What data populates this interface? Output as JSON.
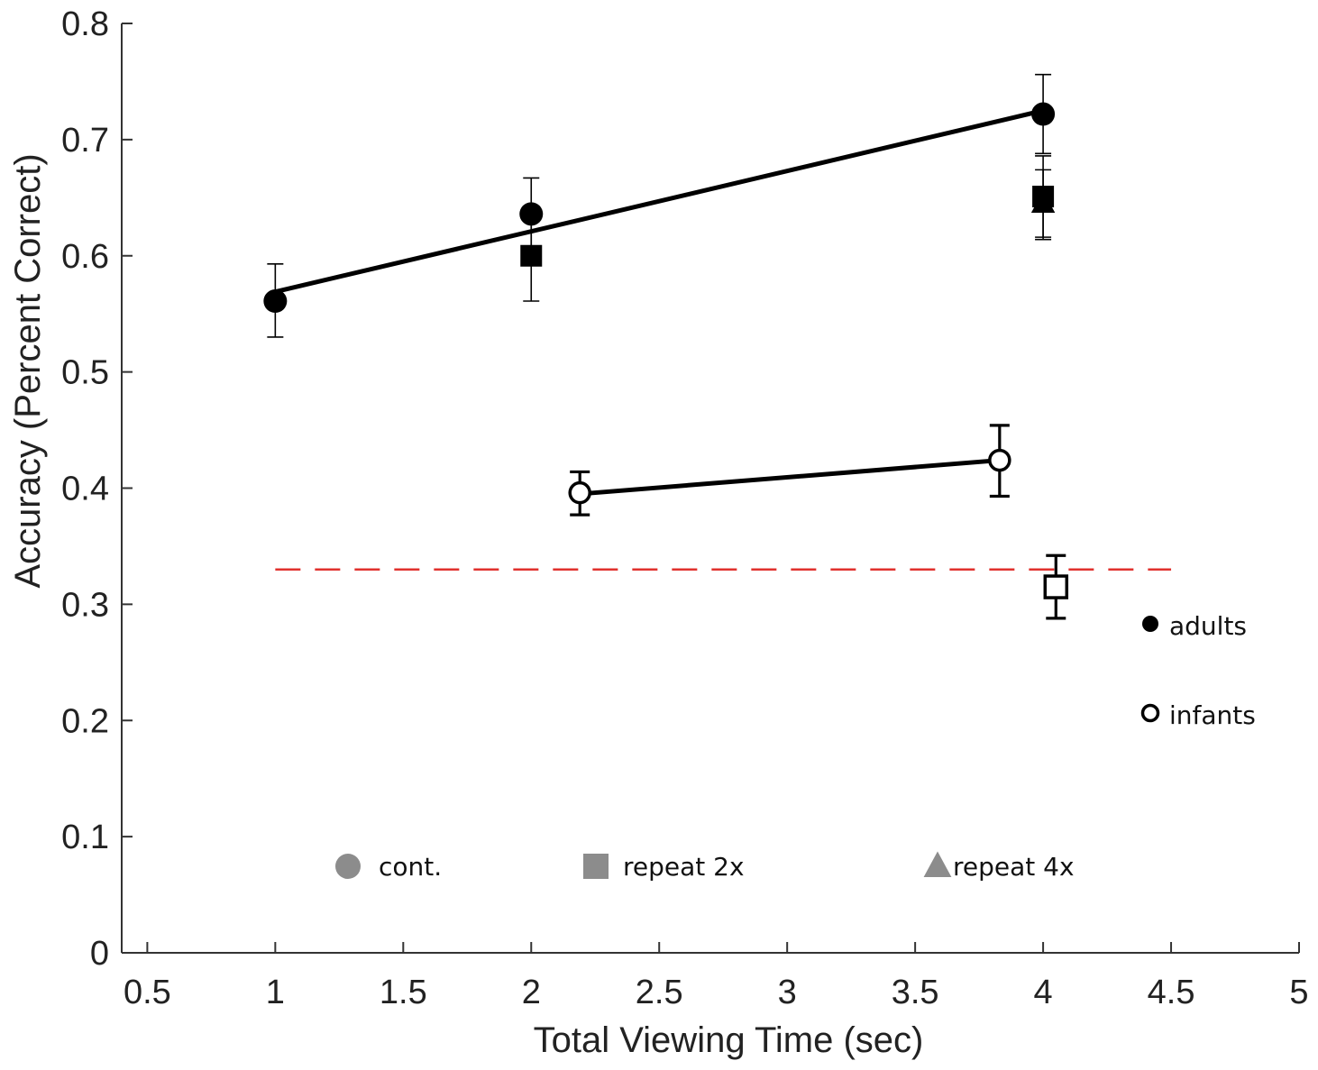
{
  "chart_data": {
    "type": "scatter",
    "xlabel": "Total Viewing Time (sec)",
    "ylabel": "Accuracy (Percent Correct)",
    "xlim": [
      0.4,
      5
    ],
    "ylim": [
      0,
      0.8
    ],
    "x_ticks": [
      "0.5",
      "1",
      "1.5",
      "2",
      "2.5",
      "3",
      "3.5",
      "4",
      "4.5",
      "5"
    ],
    "y_ticks": [
      "0",
      "0.1",
      "0.2",
      "0.3",
      "0.4",
      "0.5",
      "0.6",
      "0.7",
      "0.8"
    ],
    "series": [
      {
        "name": "adults cont.",
        "group": "adults",
        "condition": "cont.",
        "marker": "circle",
        "filled": true,
        "points": [
          {
            "x": 1,
            "y": 0.561,
            "err_low": 0.53,
            "err_high": 0.593
          },
          {
            "x": 2,
            "y": 0.636,
            "err_low": 0.605,
            "err_high": 0.667
          },
          {
            "x": 4,
            "y": 0.722,
            "err_low": 0.688,
            "err_high": 0.756
          }
        ]
      },
      {
        "name": "adults repeat 2x",
        "group": "adults",
        "condition": "repeat 2x",
        "marker": "square",
        "filled": true,
        "points": [
          {
            "x": 2,
            "y": 0.6,
            "err_low": 0.561,
            "err_high": 0.638
          },
          {
            "x": 4,
            "y": 0.651,
            "err_low": 0.616,
            "err_high": 0.686
          }
        ]
      },
      {
        "name": "adults repeat 4x",
        "group": "adults",
        "condition": "repeat 4x",
        "marker": "triangle",
        "filled": true,
        "points": [
          {
            "x": 4,
            "y": 0.645,
            "err_low": 0.614,
            "err_high": 0.674
          }
        ]
      },
      {
        "name": "infants cont.",
        "group": "infants",
        "condition": "cont.",
        "marker": "circle",
        "filled": false,
        "points": [
          {
            "x": 2.19,
            "y": 0.396,
            "err_low": 0.377,
            "err_high": 0.414
          },
          {
            "x": 3.83,
            "y": 0.424,
            "err_low": 0.393,
            "err_high": 0.454
          }
        ]
      },
      {
        "name": "infants repeat 2x",
        "group": "infants",
        "condition": "repeat 2x",
        "marker": "square",
        "filled": false,
        "points": [
          {
            "x": 4.05,
            "y": 0.315,
            "err_low": 0.288,
            "err_high": 0.342
          }
        ]
      }
    ],
    "fit_lines": [
      {
        "name": "adults fit",
        "x1": 1,
        "y1": 0.569,
        "x2": 4,
        "y2": 0.725
      },
      {
        "name": "infants fit",
        "x1": 2.19,
        "y1": 0.395,
        "x2": 3.83,
        "y2": 0.424
      }
    ],
    "chance_line": {
      "y": 0.33,
      "x_start": 1,
      "x_end": 4.5,
      "color": "#e0312d",
      "style": "dashed"
    },
    "group_legend": [
      {
        "label": "adults",
        "marker": "circle",
        "filled": true
      },
      {
        "label": "infants",
        "marker": "circle",
        "filled": false
      }
    ],
    "condition_legend": [
      {
        "label": "cont.",
        "marker": "circle"
      },
      {
        "label": "repeat 2x",
        "marker": "square"
      },
      {
        "label": "repeat 4x",
        "marker": "triangle"
      }
    ],
    "colors": {
      "marker": "#000000",
      "legend_marker": "#8c8c8c",
      "axis": "#333333",
      "text": "#222222"
    }
  }
}
